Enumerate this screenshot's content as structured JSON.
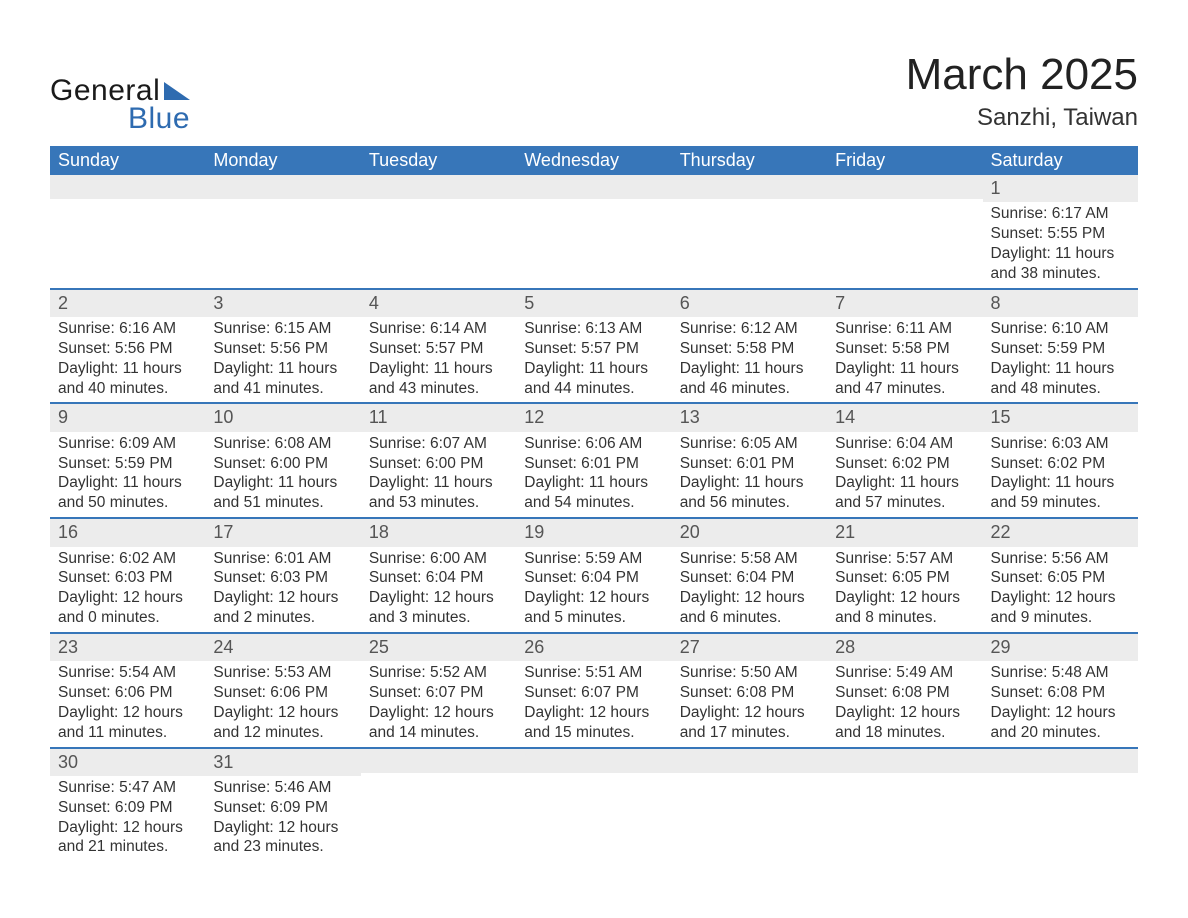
{
  "brand": {
    "word1": "General",
    "word2": "Blue",
    "text_color": "#1a1a1a",
    "accent_color": "#2e6bb0"
  },
  "title": {
    "month_year": "March 2025",
    "location": "Sanzhi, Taiwan",
    "month_fontsize": 44,
    "location_fontsize": 24,
    "text_color": "#222222"
  },
  "calendar": {
    "header_bg": "#3776b9",
    "header_text_color": "#ffffff",
    "row_border_color": "#3776b9",
    "daynum_bg": "#ececec",
    "daynum_color": "#555555",
    "body_text_color": "#333333",
    "background_color": "#ffffff",
    "columns": [
      "Sunday",
      "Monday",
      "Tuesday",
      "Wednesday",
      "Thursday",
      "Friday",
      "Saturday"
    ],
    "weeks": [
      [
        {
          "day": "",
          "sunrise": "",
          "sunset": "",
          "daylight": ""
        },
        {
          "day": "",
          "sunrise": "",
          "sunset": "",
          "daylight": ""
        },
        {
          "day": "",
          "sunrise": "",
          "sunset": "",
          "daylight": ""
        },
        {
          "day": "",
          "sunrise": "",
          "sunset": "",
          "daylight": ""
        },
        {
          "day": "",
          "sunrise": "",
          "sunset": "",
          "daylight": ""
        },
        {
          "day": "",
          "sunrise": "",
          "sunset": "",
          "daylight": ""
        },
        {
          "day": "1",
          "sunrise": "Sunrise: 6:17 AM",
          "sunset": "Sunset: 5:55 PM",
          "daylight": "Daylight: 11 hours and 38 minutes."
        }
      ],
      [
        {
          "day": "2",
          "sunrise": "Sunrise: 6:16 AM",
          "sunset": "Sunset: 5:56 PM",
          "daylight": "Daylight: 11 hours and 40 minutes."
        },
        {
          "day": "3",
          "sunrise": "Sunrise: 6:15 AM",
          "sunset": "Sunset: 5:56 PM",
          "daylight": "Daylight: 11 hours and 41 minutes."
        },
        {
          "day": "4",
          "sunrise": "Sunrise: 6:14 AM",
          "sunset": "Sunset: 5:57 PM",
          "daylight": "Daylight: 11 hours and 43 minutes."
        },
        {
          "day": "5",
          "sunrise": "Sunrise: 6:13 AM",
          "sunset": "Sunset: 5:57 PM",
          "daylight": "Daylight: 11 hours and 44 minutes."
        },
        {
          "day": "6",
          "sunrise": "Sunrise: 6:12 AM",
          "sunset": "Sunset: 5:58 PM",
          "daylight": "Daylight: 11 hours and 46 minutes."
        },
        {
          "day": "7",
          "sunrise": "Sunrise: 6:11 AM",
          "sunset": "Sunset: 5:58 PM",
          "daylight": "Daylight: 11 hours and 47 minutes."
        },
        {
          "day": "8",
          "sunrise": "Sunrise: 6:10 AM",
          "sunset": "Sunset: 5:59 PM",
          "daylight": "Daylight: 11 hours and 48 minutes."
        }
      ],
      [
        {
          "day": "9",
          "sunrise": "Sunrise: 6:09 AM",
          "sunset": "Sunset: 5:59 PM",
          "daylight": "Daylight: 11 hours and 50 minutes."
        },
        {
          "day": "10",
          "sunrise": "Sunrise: 6:08 AM",
          "sunset": "Sunset: 6:00 PM",
          "daylight": "Daylight: 11 hours and 51 minutes."
        },
        {
          "day": "11",
          "sunrise": "Sunrise: 6:07 AM",
          "sunset": "Sunset: 6:00 PM",
          "daylight": "Daylight: 11 hours and 53 minutes."
        },
        {
          "day": "12",
          "sunrise": "Sunrise: 6:06 AM",
          "sunset": "Sunset: 6:01 PM",
          "daylight": "Daylight: 11 hours and 54 minutes."
        },
        {
          "day": "13",
          "sunrise": "Sunrise: 6:05 AM",
          "sunset": "Sunset: 6:01 PM",
          "daylight": "Daylight: 11 hours and 56 minutes."
        },
        {
          "day": "14",
          "sunrise": "Sunrise: 6:04 AM",
          "sunset": "Sunset: 6:02 PM",
          "daylight": "Daylight: 11 hours and 57 minutes."
        },
        {
          "day": "15",
          "sunrise": "Sunrise: 6:03 AM",
          "sunset": "Sunset: 6:02 PM",
          "daylight": "Daylight: 11 hours and 59 minutes."
        }
      ],
      [
        {
          "day": "16",
          "sunrise": "Sunrise: 6:02 AM",
          "sunset": "Sunset: 6:03 PM",
          "daylight": "Daylight: 12 hours and 0 minutes."
        },
        {
          "day": "17",
          "sunrise": "Sunrise: 6:01 AM",
          "sunset": "Sunset: 6:03 PM",
          "daylight": "Daylight: 12 hours and 2 minutes."
        },
        {
          "day": "18",
          "sunrise": "Sunrise: 6:00 AM",
          "sunset": "Sunset: 6:04 PM",
          "daylight": "Daylight: 12 hours and 3 minutes."
        },
        {
          "day": "19",
          "sunrise": "Sunrise: 5:59 AM",
          "sunset": "Sunset: 6:04 PM",
          "daylight": "Daylight: 12 hours and 5 minutes."
        },
        {
          "day": "20",
          "sunrise": "Sunrise: 5:58 AM",
          "sunset": "Sunset: 6:04 PM",
          "daylight": "Daylight: 12 hours and 6 minutes."
        },
        {
          "day": "21",
          "sunrise": "Sunrise: 5:57 AM",
          "sunset": "Sunset: 6:05 PM",
          "daylight": "Daylight: 12 hours and 8 minutes."
        },
        {
          "day": "22",
          "sunrise": "Sunrise: 5:56 AM",
          "sunset": "Sunset: 6:05 PM",
          "daylight": "Daylight: 12 hours and 9 minutes."
        }
      ],
      [
        {
          "day": "23",
          "sunrise": "Sunrise: 5:54 AM",
          "sunset": "Sunset: 6:06 PM",
          "daylight": "Daylight: 12 hours and 11 minutes."
        },
        {
          "day": "24",
          "sunrise": "Sunrise: 5:53 AM",
          "sunset": "Sunset: 6:06 PM",
          "daylight": "Daylight: 12 hours and 12 minutes."
        },
        {
          "day": "25",
          "sunrise": "Sunrise: 5:52 AM",
          "sunset": "Sunset: 6:07 PM",
          "daylight": "Daylight: 12 hours and 14 minutes."
        },
        {
          "day": "26",
          "sunrise": "Sunrise: 5:51 AM",
          "sunset": "Sunset: 6:07 PM",
          "daylight": "Daylight: 12 hours and 15 minutes."
        },
        {
          "day": "27",
          "sunrise": "Sunrise: 5:50 AM",
          "sunset": "Sunset: 6:08 PM",
          "daylight": "Daylight: 12 hours and 17 minutes."
        },
        {
          "day": "28",
          "sunrise": "Sunrise: 5:49 AM",
          "sunset": "Sunset: 6:08 PM",
          "daylight": "Daylight: 12 hours and 18 minutes."
        },
        {
          "day": "29",
          "sunrise": "Sunrise: 5:48 AM",
          "sunset": "Sunset: 6:08 PM",
          "daylight": "Daylight: 12 hours and 20 minutes."
        }
      ],
      [
        {
          "day": "30",
          "sunrise": "Sunrise: 5:47 AM",
          "sunset": "Sunset: 6:09 PM",
          "daylight": "Daylight: 12 hours and 21 minutes."
        },
        {
          "day": "31",
          "sunrise": "Sunrise: 5:46 AM",
          "sunset": "Sunset: 6:09 PM",
          "daylight": "Daylight: 12 hours and 23 minutes."
        },
        {
          "day": "",
          "sunrise": "",
          "sunset": "",
          "daylight": ""
        },
        {
          "day": "",
          "sunrise": "",
          "sunset": "",
          "daylight": ""
        },
        {
          "day": "",
          "sunrise": "",
          "sunset": "",
          "daylight": ""
        },
        {
          "day": "",
          "sunrise": "",
          "sunset": "",
          "daylight": ""
        },
        {
          "day": "",
          "sunrise": "",
          "sunset": "",
          "daylight": ""
        }
      ]
    ]
  }
}
